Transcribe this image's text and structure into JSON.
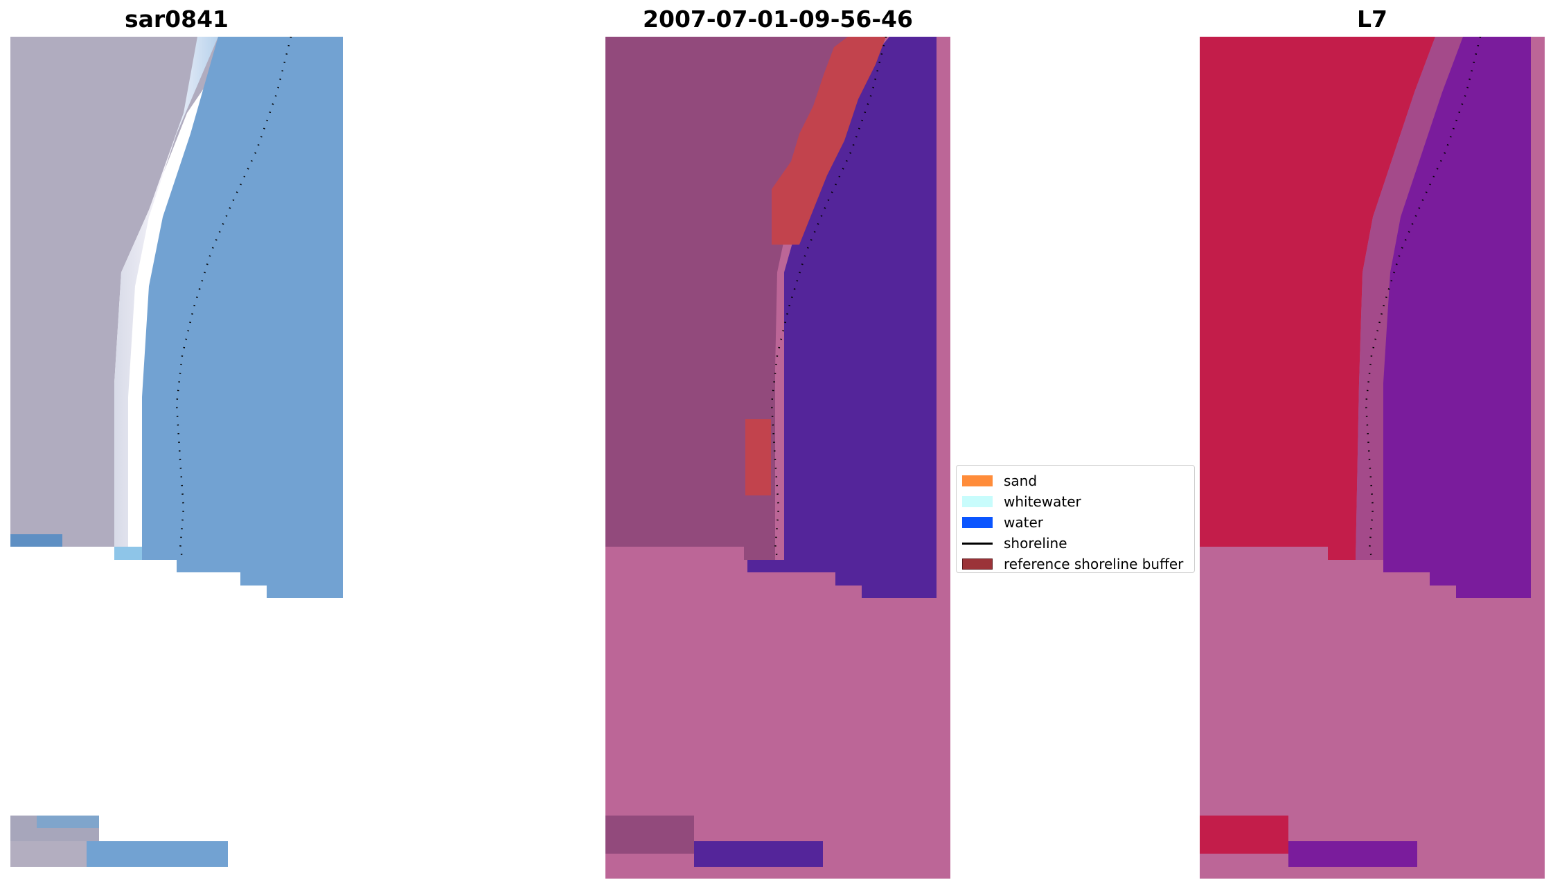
{
  "panels": [
    {
      "title": "sar0841"
    },
    {
      "title": "2007-07-01-09-56-46"
    },
    {
      "title": "L7"
    }
  ],
  "legend": {
    "items": [
      {
        "label": "sand",
        "color": "#ff8c3a"
      },
      {
        "label": "whitewater",
        "color": "#c8fcfc"
      },
      {
        "label": "water",
        "color": "#0a55ff"
      },
      {
        "label": "shoreline",
        "color": "#000000"
      },
      {
        "label": "reference shoreline buffer",
        "color": "#9b3338"
      }
    ]
  },
  "colors": {
    "rgb_land": "#b0acbf",
    "rgb_water": "#72a2d2",
    "rgb_white": "#f2f4fb",
    "cls_land": "#924a7c",
    "cls_water": "#54259a",
    "cls_buffer": "#c2434d",
    "cls_nodata": "#bc6697",
    "ir_land": "#c31d4a",
    "ir_water": "#7a1c9c",
    "ir_nodata": "#bc6697"
  }
}
